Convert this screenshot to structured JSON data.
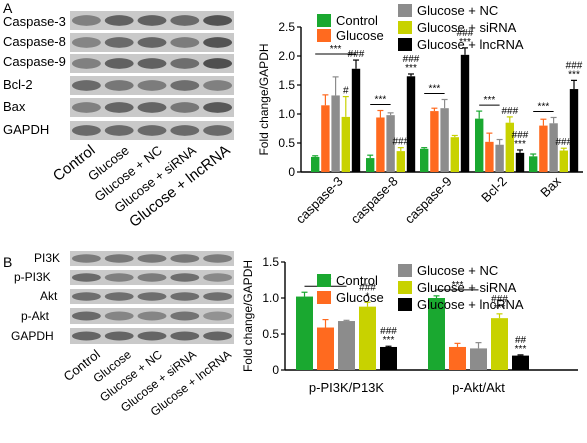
{
  "figure": {
    "panel_a": {
      "letter": "A",
      "blot_rows": [
        "Caspase-3",
        "Caspase-8",
        "Caspase-9",
        "Bcl-2",
        "Bax",
        "GAPDH"
      ],
      "lane_labels": [
        "Control",
        "Glucose",
        "Glucose + NC",
        "Glucose + siRNA",
        "Glucose + lncRNA"
      ]
    },
    "panel_b": {
      "letter": "B",
      "blot_rows": [
        "PI3K",
        "p-PI3K",
        "Akt",
        "p-Akt",
        "GAPDH"
      ],
      "lane_labels": [
        "Control",
        "Glucose",
        "Glucose + NC",
        "Glucose + siRNA",
        "Glucose + lncRNA"
      ]
    }
  },
  "chart_data": [
    {
      "type": "bar",
      "ylabel": "Fold change/GAPDH",
      "ylim": [
        0,
        2.5
      ],
      "yticks": [
        "0",
        "0.5",
        "1.0",
        "1.5",
        "2.0",
        "2.5"
      ],
      "categories": [
        "caspase-3",
        "caspase-8",
        "caspase-9",
        "Bcl-2",
        "Bax"
      ],
      "legend_placement": "top",
      "series": [
        {
          "name": "Control",
          "color": "#1aa830",
          "values": [
            0.26,
            0.24,
            0.4,
            0.92,
            0.27
          ],
          "errors": [
            0.02,
            0.05,
            0.02,
            0.13,
            0.04
          ]
        },
        {
          "name": "Glucose",
          "color": "#ff6a1f",
          "values": [
            1.15,
            0.94,
            1.05,
            0.52,
            0.8
          ],
          "errors": [
            0.18,
            0.12,
            0.05,
            0.15,
            0.11
          ]
        },
        {
          "name": "Glucose + NC",
          "color": "#8c8c8c",
          "values": [
            1.32,
            0.98,
            1.1,
            0.47,
            0.84
          ],
          "errors": [
            0.32,
            0.04,
            0.15,
            0.09,
            0.1
          ]
        },
        {
          "name": "Glucose + siRNA",
          "color": "#c8d200",
          "values": [
            0.95,
            0.36,
            0.6,
            0.85,
            0.37
          ],
          "errors": [
            0.35,
            0.06,
            0.03,
            0.1,
            0.04
          ]
        },
        {
          "name": "Glucose + lncRNA",
          "color": "#000000",
          "values": [
            1.78,
            1.65,
            2.02,
            0.33,
            1.43
          ],
          "errors": [
            0.15,
            0.04,
            0.12,
            0.05,
            0.15
          ]
        }
      ],
      "annotations": [
        {
          "group": 0,
          "series": 3,
          "text": "#"
        },
        {
          "group": 0,
          "series": 4,
          "text": "###"
        },
        {
          "group": 1,
          "series": 3,
          "text": "###"
        },
        {
          "group": 1,
          "series": 4,
          "text": "###"
        },
        {
          "group": 1,
          "series": 4,
          "text": "***"
        },
        {
          "group": 2,
          "series": 4,
          "text": "###"
        },
        {
          "group": 2,
          "series": 4,
          "text": "***"
        },
        {
          "group": 3,
          "series": 3,
          "text": "###"
        },
        {
          "group": 3,
          "series": 4,
          "text": "###"
        },
        {
          "group": 3,
          "series": 4,
          "text": "***"
        },
        {
          "group": 4,
          "series": 3,
          "text": "###"
        },
        {
          "group": 4,
          "series": 4,
          "text": "###"
        },
        {
          "group": 4,
          "series": 4,
          "text": "***"
        }
      ],
      "brackets": [
        {
          "group": 0,
          "from": 0,
          "to": 4,
          "text": "***"
        },
        {
          "group": 1,
          "from": 0,
          "to": 2,
          "text": "***"
        },
        {
          "group": 2,
          "from": 0,
          "to": 2,
          "text": "***"
        },
        {
          "group": 3,
          "from": 0,
          "to": 2,
          "text": "***"
        },
        {
          "group": 4,
          "from": 0,
          "to": 2,
          "text": "***"
        }
      ]
    },
    {
      "type": "bar",
      "ylabel": "Fold change/GAPDH",
      "ylim": [
        0,
        1.5
      ],
      "yticks": [
        "0",
        "0.5",
        "1.0",
        "1.5"
      ],
      "categories": [
        "p-PI3K/P13K",
        "p-Akt/Akt"
      ],
      "legend_placement": "top",
      "series": [
        {
          "name": "Control",
          "color": "#1aa830",
          "values": [
            1.02,
            1.0
          ],
          "errors": [
            0.06,
            0.03
          ]
        },
        {
          "name": "Glucose",
          "color": "#ff6a1f",
          "values": [
            0.59,
            0.32
          ],
          "errors": [
            0.11,
            0.05
          ]
        },
        {
          "name": "Glucose + NC",
          "color": "#8c8c8c",
          "values": [
            0.68,
            0.3
          ],
          "errors": [
            0.01,
            0.08
          ]
        },
        {
          "name": "Glucose + siRNA",
          "color": "#c8d200",
          "values": [
            0.88,
            0.72
          ],
          "errors": [
            0.06,
            0.06
          ]
        },
        {
          "name": "Glucose + lncRNA",
          "color": "#000000",
          "values": [
            0.32,
            0.2
          ],
          "errors": [
            0.01,
            0.01
          ]
        }
      ],
      "annotations": [
        {
          "group": 0,
          "series": 3,
          "text": "###"
        },
        {
          "group": 0,
          "series": 3,
          "text": "*"
        },
        {
          "group": 0,
          "series": 4,
          "text": "###"
        },
        {
          "group": 0,
          "series": 4,
          "text": "***"
        },
        {
          "group": 1,
          "series": 3,
          "text": "###"
        },
        {
          "group": 1,
          "series": 3,
          "text": "***"
        },
        {
          "group": 1,
          "series": 4,
          "text": "##"
        },
        {
          "group": 1,
          "series": 4,
          "text": "***"
        }
      ],
      "brackets": [
        {
          "group": 0,
          "from": 0,
          "to": 2,
          "text": "***"
        },
        {
          "group": 1,
          "from": 0,
          "to": 2,
          "text": "***"
        }
      ]
    }
  ]
}
